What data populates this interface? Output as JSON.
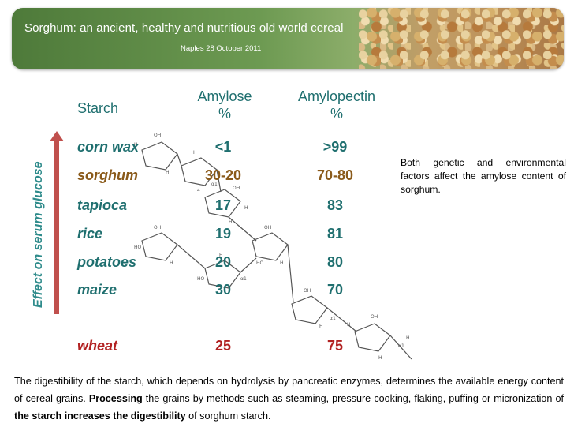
{
  "header": {
    "title": "Sorghum: an ancient, healthy and nutritious old world cereal",
    "subtitle": "Naples  28 October 2011"
  },
  "axis_label": "Effect on serum glucose",
  "table": {
    "columns": [
      "Starch",
      "Amylose %",
      "Amylopectin %"
    ],
    "col_amylose_line1": "Amylose",
    "col_amylose_line2": "%",
    "col_amylopectin_line1": "Amylopectin",
    "col_amylopectin_line2": "%",
    "rows": [
      {
        "name": "corn wax",
        "amylose": "<1",
        "amylopectin": ">99"
      },
      {
        "name": "sorghum",
        "amylose": "30-20",
        "amylopectin": "70-80"
      },
      {
        "name": "tapioca",
        "amylose": "17",
        "amylopectin": "83"
      },
      {
        "name": "rice",
        "amylose": "19",
        "amylopectin": "81"
      },
      {
        "name": "potatoes",
        "amylose": "20",
        "amylopectin": "80"
      },
      {
        "name": "maize",
        "amylose": "30",
        "amylopectin": "70"
      },
      {
        "name": "wheat",
        "amylose": "25",
        "amylopectin": "75"
      }
    ]
  },
  "side_note": "Both genetic and environmental factors affect the amylose content of sorghum.",
  "bottom": {
    "part1": "The digestibility of the starch, which depends on hydrolysis by pancreatic enzymes, determines the available energy content of cereal grains. ",
    "bold1": "Processing",
    "part2": " the grains by methods such as steaming, pressure-cooking, flaking, puffing or micronization of ",
    "bold2": "the starch increases the digestibility",
    "part3": " of sorghum starch."
  },
  "colors": {
    "teal": "#1f6f6f",
    "red": "#b22222",
    "sorghum_brown": "#8a5a1a",
    "arrow": "#c0504d"
  }
}
